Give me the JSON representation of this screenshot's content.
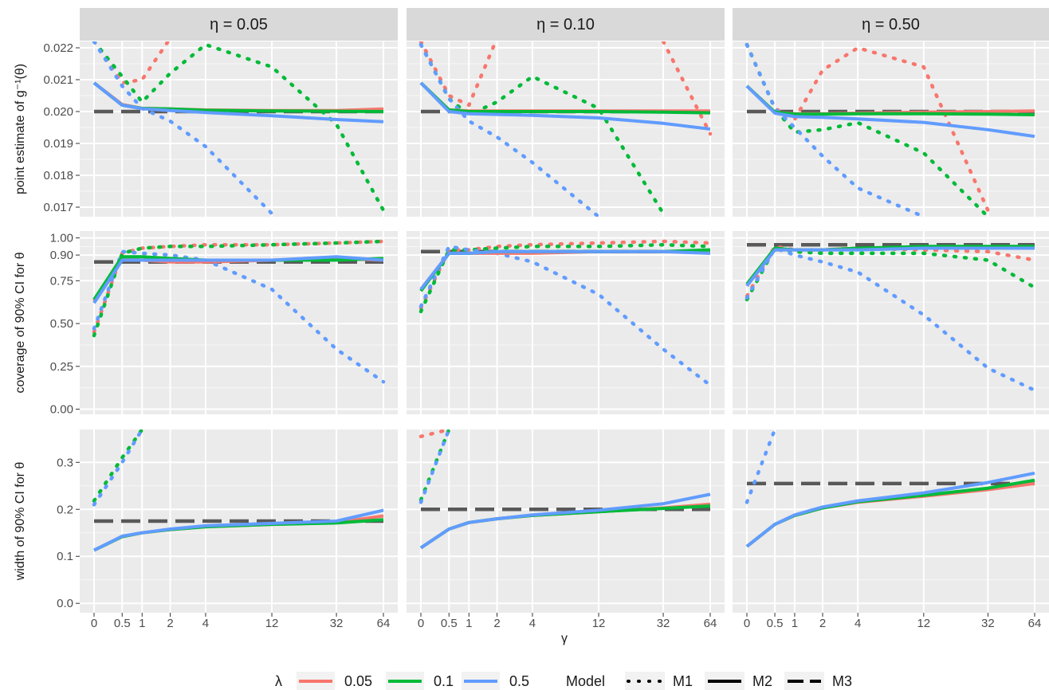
{
  "chart_data": {
    "type": "line",
    "facets": {
      "columns": [
        "η = 0.05",
        "η = 0.10",
        "η = 0.50"
      ],
      "rows": [
        {
          "ylabel": "point estimate of g⁻¹(θ)",
          "ylim": [
            0.0167,
            0.0222
          ],
          "yticks": [
            0.017,
            0.018,
            0.019,
            0.02,
            0.021,
            0.022
          ],
          "yticklabels": [
            "0.017",
            "0.018",
            "0.019",
            "0.020",
            "0.021",
            "0.022"
          ]
        },
        {
          "ylabel": "coverage of 90% CI for θ",
          "ylim": [
            -0.03,
            1.04
          ],
          "yticks": [
            0.0,
            0.25,
            0.5,
            0.75,
            0.9,
            1.0
          ],
          "yticklabels": [
            "0.00",
            "0.25",
            "0.50",
            "0.75",
            "0.90",
            "1.00"
          ]
        },
        {
          "ylabel": "width of 90% CI for θ",
          "ylim": [
            -0.02,
            0.37
          ],
          "yticks": [
            0.0,
            0.1,
            0.2,
            0.3
          ],
          "yticklabels": [
            "0.0",
            "0.1",
            "0.2",
            "0.3"
          ]
        }
      ]
    },
    "x": [
      0,
      0.5,
      1,
      2,
      4,
      12,
      32,
      64
    ],
    "xticklabels": [
      "0",
      "0.5",
      "1",
      "2",
      "4",
      "12",
      "32",
      "64"
    ],
    "xlabel": "γ",
    "grid": true,
    "legend_position": "bottom",
    "legend": {
      "lambda_title": "λ",
      "lambda": [
        {
          "label": "0.05",
          "color": "#F8766D"
        },
        {
          "label": "0.1",
          "color": "#00BA38"
        },
        {
          "label": "0.5",
          "color": "#619CFF"
        }
      ],
      "model_title": "Model",
      "models": [
        {
          "label": "M1",
          "dash": "dotted"
        },
        {
          "label": "M2",
          "dash": "solid"
        },
        {
          "label": "M3",
          "dash": "longdash"
        }
      ]
    },
    "m3_reference": [
      [
        0.02,
        0.02,
        0.02
      ],
      [
        0.86,
        0.92,
        0.96
      ],
      [
        0.175,
        0.2,
        0.255
      ]
    ],
    "panels": [
      [
        {
          "row": 0,
          "col": 0,
          "series": [
            {
              "lambda": "0.05",
              "model": "M2",
              "values": [
                0.0209,
                0.02022,
                0.0201,
                0.02008,
                0.02005,
                0.02003,
                0.02003,
                0.02008
              ]
            },
            {
              "lambda": "0.1",
              "model": "M2",
              "values": [
                0.0209,
                0.0202,
                0.0201,
                0.02008,
                0.02004,
                0.02002,
                0.02001,
                0.02
              ]
            },
            {
              "lambda": "0.5",
              "model": "M2",
              "values": [
                0.0209,
                0.0202,
                0.02009,
                0.02003,
                0.01997,
                0.01987,
                0.01975,
                0.01968
              ]
            },
            {
              "lambda": "0.05",
              "model": "M1",
              "values": [
                0.0222,
                0.0209,
                0.021,
                0.0223
              ]
            },
            {
              "lambda": "0.1",
              "model": "M1",
              "values": [
                0.0222,
                0.0211,
                0.0203,
                0.0212,
                0.0221,
                0.0214,
                0.0196,
                0.0169
              ]
            },
            {
              "lambda": "0.5",
              "model": "M1",
              "values": [
                0.0222,
                0.0208,
                0.0201,
                0.0197,
                0.0189,
                0.0168
              ]
            }
          ]
        },
        {
          "row": 0,
          "col": 1,
          "series": [
            {
              "lambda": "0.05",
              "model": "M2",
              "values": [
                0.0209,
                0.02005,
                0.02002,
                0.02002,
                0.02002,
                0.02002,
                0.02002,
                0.02002
              ]
            },
            {
              "lambda": "0.1",
              "model": "M2",
              "values": [
                0.0209,
                0.02005,
                0.02,
                0.02,
                0.02,
                0.02,
                0.01998,
                0.01996
              ]
            },
            {
              "lambda": "0.5",
              "model": "M2",
              "values": [
                0.0209,
                0.02,
                0.01993,
                0.01991,
                0.01988,
                0.0198,
                0.01963,
                0.01945
              ]
            },
            {
              "lambda": "0.05",
              "model": "M1",
              "values": [
                0.0222,
                0.0205,
                0.0202,
                0.0223,
                null,
                null,
                0.0222,
                0.0193
              ]
            },
            {
              "lambda": "0.1",
              "model": "M1",
              "values": [
                0.0221,
                0.0204,
                0.0199,
                0.0203,
                0.0211,
                0.0201,
                0.0168
              ]
            },
            {
              "lambda": "0.5",
              "model": "M1",
              "values": [
                0.0221,
                0.0204,
                0.0197,
                0.0192,
                0.0184,
                0.0167
              ]
            }
          ]
        },
        {
          "row": 0,
          "col": 2,
          "series": [
            {
              "lambda": "0.05",
              "model": "M2",
              "values": [
                0.0208,
                0.01998,
                0.01993,
                0.01993,
                0.01995,
                0.01998,
                0.02,
                0.02002
              ]
            },
            {
              "lambda": "0.1",
              "model": "M2",
              "values": [
                0.0208,
                0.01998,
                0.01992,
                0.01992,
                0.01993,
                0.01993,
                0.01992,
                0.0199
              ]
            },
            {
              "lambda": "0.5",
              "model": "M2",
              "values": [
                0.0208,
                0.01995,
                0.01984,
                0.01982,
                0.01977,
                0.01966,
                0.01943,
                0.01922
              ]
            },
            {
              "lambda": "0.05",
              "model": "M1",
              "values": [
                0.0221,
                0.0201,
                0.01975,
                0.0213,
                0.022,
                0.0214,
                0.0169
              ]
            },
            {
              "lambda": "0.1",
              "model": "M1",
              "values": [
                0.0221,
                0.0201,
                0.01935,
                0.01943,
                0.01965,
                0.0187,
                0.0167
              ]
            },
            {
              "lambda": "0.5",
              "model": "M1",
              "values": [
                0.0221,
                0.0201,
                0.0195,
                0.0186,
                0.0176,
                0.0167
              ]
            }
          ]
        }
      ],
      [
        {
          "row": 1,
          "col": 0,
          "series": [
            {
              "lambda": "0.05",
              "model": "M2",
              "values": [
                0.63,
                0.88,
                0.87,
                0.86,
                0.86,
                0.87,
                0.88,
                0.87
              ]
            },
            {
              "lambda": "0.1",
              "model": "M2",
              "values": [
                0.64,
                0.89,
                0.89,
                0.88,
                0.87,
                0.87,
                0.87,
                0.88
              ]
            },
            {
              "lambda": "0.5",
              "model": "M2",
              "values": [
                0.62,
                0.87,
                0.87,
                0.87,
                0.87,
                0.87,
                0.89,
                0.87
              ]
            },
            {
              "lambda": "0.05",
              "model": "M1",
              "values": [
                0.45,
                0.91,
                0.94,
                0.95,
                0.96,
                0.96,
                0.97,
                0.98
              ]
            },
            {
              "lambda": "0.1",
              "model": "M1",
              "values": [
                0.43,
                0.91,
                0.94,
                0.95,
                0.95,
                0.96,
                0.97,
                0.98
              ]
            },
            {
              "lambda": "0.5",
              "model": "M1",
              "values": [
                0.47,
                0.92,
                0.91,
                0.9,
                0.87,
                0.7,
                0.35,
                0.16
              ]
            }
          ]
        },
        {
          "row": 1,
          "col": 1,
          "series": [
            {
              "lambda": "0.05",
              "model": "M2",
              "values": [
                0.7,
                0.91,
                0.91,
                0.91,
                0.91,
                0.92,
                0.92,
                0.92
              ]
            },
            {
              "lambda": "0.1",
              "model": "M2",
              "values": [
                0.69,
                0.91,
                0.91,
                0.92,
                0.92,
                0.92,
                0.92,
                0.93
              ]
            },
            {
              "lambda": "0.5",
              "model": "M2",
              "values": [
                0.7,
                0.91,
                0.91,
                0.92,
                0.92,
                0.92,
                0.92,
                0.91
              ]
            },
            {
              "lambda": "0.05",
              "model": "M1",
              "values": [
                0.59,
                0.93,
                0.93,
                0.95,
                0.96,
                0.97,
                0.98,
                0.97
              ]
            },
            {
              "lambda": "0.1",
              "model": "M1",
              "values": [
                0.57,
                0.93,
                0.93,
                0.94,
                0.95,
                0.95,
                0.96,
                0.95
              ]
            },
            {
              "lambda": "0.5",
              "model": "M1",
              "values": [
                0.6,
                0.95,
                0.93,
                0.91,
                0.86,
                0.67,
                0.35,
                0.14
              ]
            }
          ]
        },
        {
          "row": 1,
          "col": 2,
          "series": [
            {
              "lambda": "0.05",
              "model": "M2",
              "values": [
                0.72,
                0.93,
                0.93,
                0.93,
                0.94,
                0.94,
                0.94,
                0.94
              ]
            },
            {
              "lambda": "0.1",
              "model": "M2",
              "values": [
                0.73,
                0.94,
                0.93,
                0.93,
                0.94,
                0.95,
                0.95,
                0.95
              ]
            },
            {
              "lambda": "0.5",
              "model": "M2",
              "values": [
                0.72,
                0.93,
                0.93,
                0.93,
                0.93,
                0.94,
                0.94,
                0.94
              ]
            },
            {
              "lambda": "0.05",
              "model": "M1",
              "values": [
                0.66,
                0.95,
                0.93,
                0.93,
                0.94,
                0.93,
                0.92,
                0.87
              ]
            },
            {
              "lambda": "0.1",
              "model": "M1",
              "values": [
                0.64,
                0.94,
                0.92,
                0.91,
                0.91,
                0.91,
                0.87,
                0.71
              ]
            },
            {
              "lambda": "0.5",
              "model": "M1",
              "values": [
                0.65,
                0.94,
                0.9,
                0.86,
                0.8,
                0.55,
                0.24,
                0.11
              ]
            }
          ]
        }
      ],
      [
        {
          "row": 2,
          "col": 0,
          "series": [
            {
              "lambda": "0.05",
              "model": "M2",
              "values": [
                0.113,
                0.142,
                0.15,
                0.157,
                0.163,
                0.168,
                0.172,
                0.186
              ]
            },
            {
              "lambda": "0.1",
              "model": "M2",
              "values": [
                0.113,
                0.142,
                0.15,
                0.157,
                0.163,
                0.168,
                0.171,
                0.178
              ]
            },
            {
              "lambda": "0.5",
              "model": "M2",
              "values": [
                0.113,
                0.143,
                0.15,
                0.158,
                0.165,
                0.17,
                0.175,
                0.198
              ]
            },
            {
              "lambda": "0.1",
              "model": "M1",
              "values": [
                0.218,
                0.31,
                0.37
              ]
            },
            {
              "lambda": "0.5",
              "model": "M1",
              "values": [
                0.21,
                0.3,
                0.37
              ]
            }
          ]
        },
        {
          "row": 2,
          "col": 1,
          "series": [
            {
              "lambda": "0.05",
              "model": "M2",
              "values": [
                0.118,
                0.158,
                0.172,
                0.18,
                0.187,
                0.195,
                0.203,
                0.211
              ]
            },
            {
              "lambda": "0.1",
              "model": "M2",
              "values": [
                0.118,
                0.158,
                0.172,
                0.18,
                0.187,
                0.195,
                0.202,
                0.207
              ]
            },
            {
              "lambda": "0.5",
              "model": "M2",
              "values": [
                0.118,
                0.158,
                0.172,
                0.18,
                0.188,
                0.198,
                0.212,
                0.232
              ]
            },
            {
              "lambda": "0.05",
              "model": "M1",
              "values": [
                0.355,
                0.37
              ]
            },
            {
              "lambda": "0.1",
              "model": "M1",
              "values": [
                0.22,
                0.37
              ]
            },
            {
              "lambda": "0.5",
              "model": "M1",
              "values": [
                0.215,
                0.37
              ]
            }
          ]
        },
        {
          "row": 2,
          "col": 2,
          "series": [
            {
              "lambda": "0.05",
              "model": "M2",
              "values": [
                0.121,
                0.168,
                0.187,
                0.203,
                0.215,
                0.228,
                0.242,
                0.255
              ]
            },
            {
              "lambda": "0.1",
              "model": "M2",
              "values": [
                0.121,
                0.168,
                0.187,
                0.203,
                0.216,
                0.23,
                0.245,
                0.262
              ]
            },
            {
              "lambda": "0.5",
              "model": "M2",
              "values": [
                0.121,
                0.168,
                0.188,
                0.205,
                0.218,
                0.235,
                0.257,
                0.277
              ]
            },
            {
              "lambda": "0.5",
              "model": "M1",
              "values": [
                0.215,
                0.37
              ]
            }
          ]
        }
      ]
    ]
  }
}
